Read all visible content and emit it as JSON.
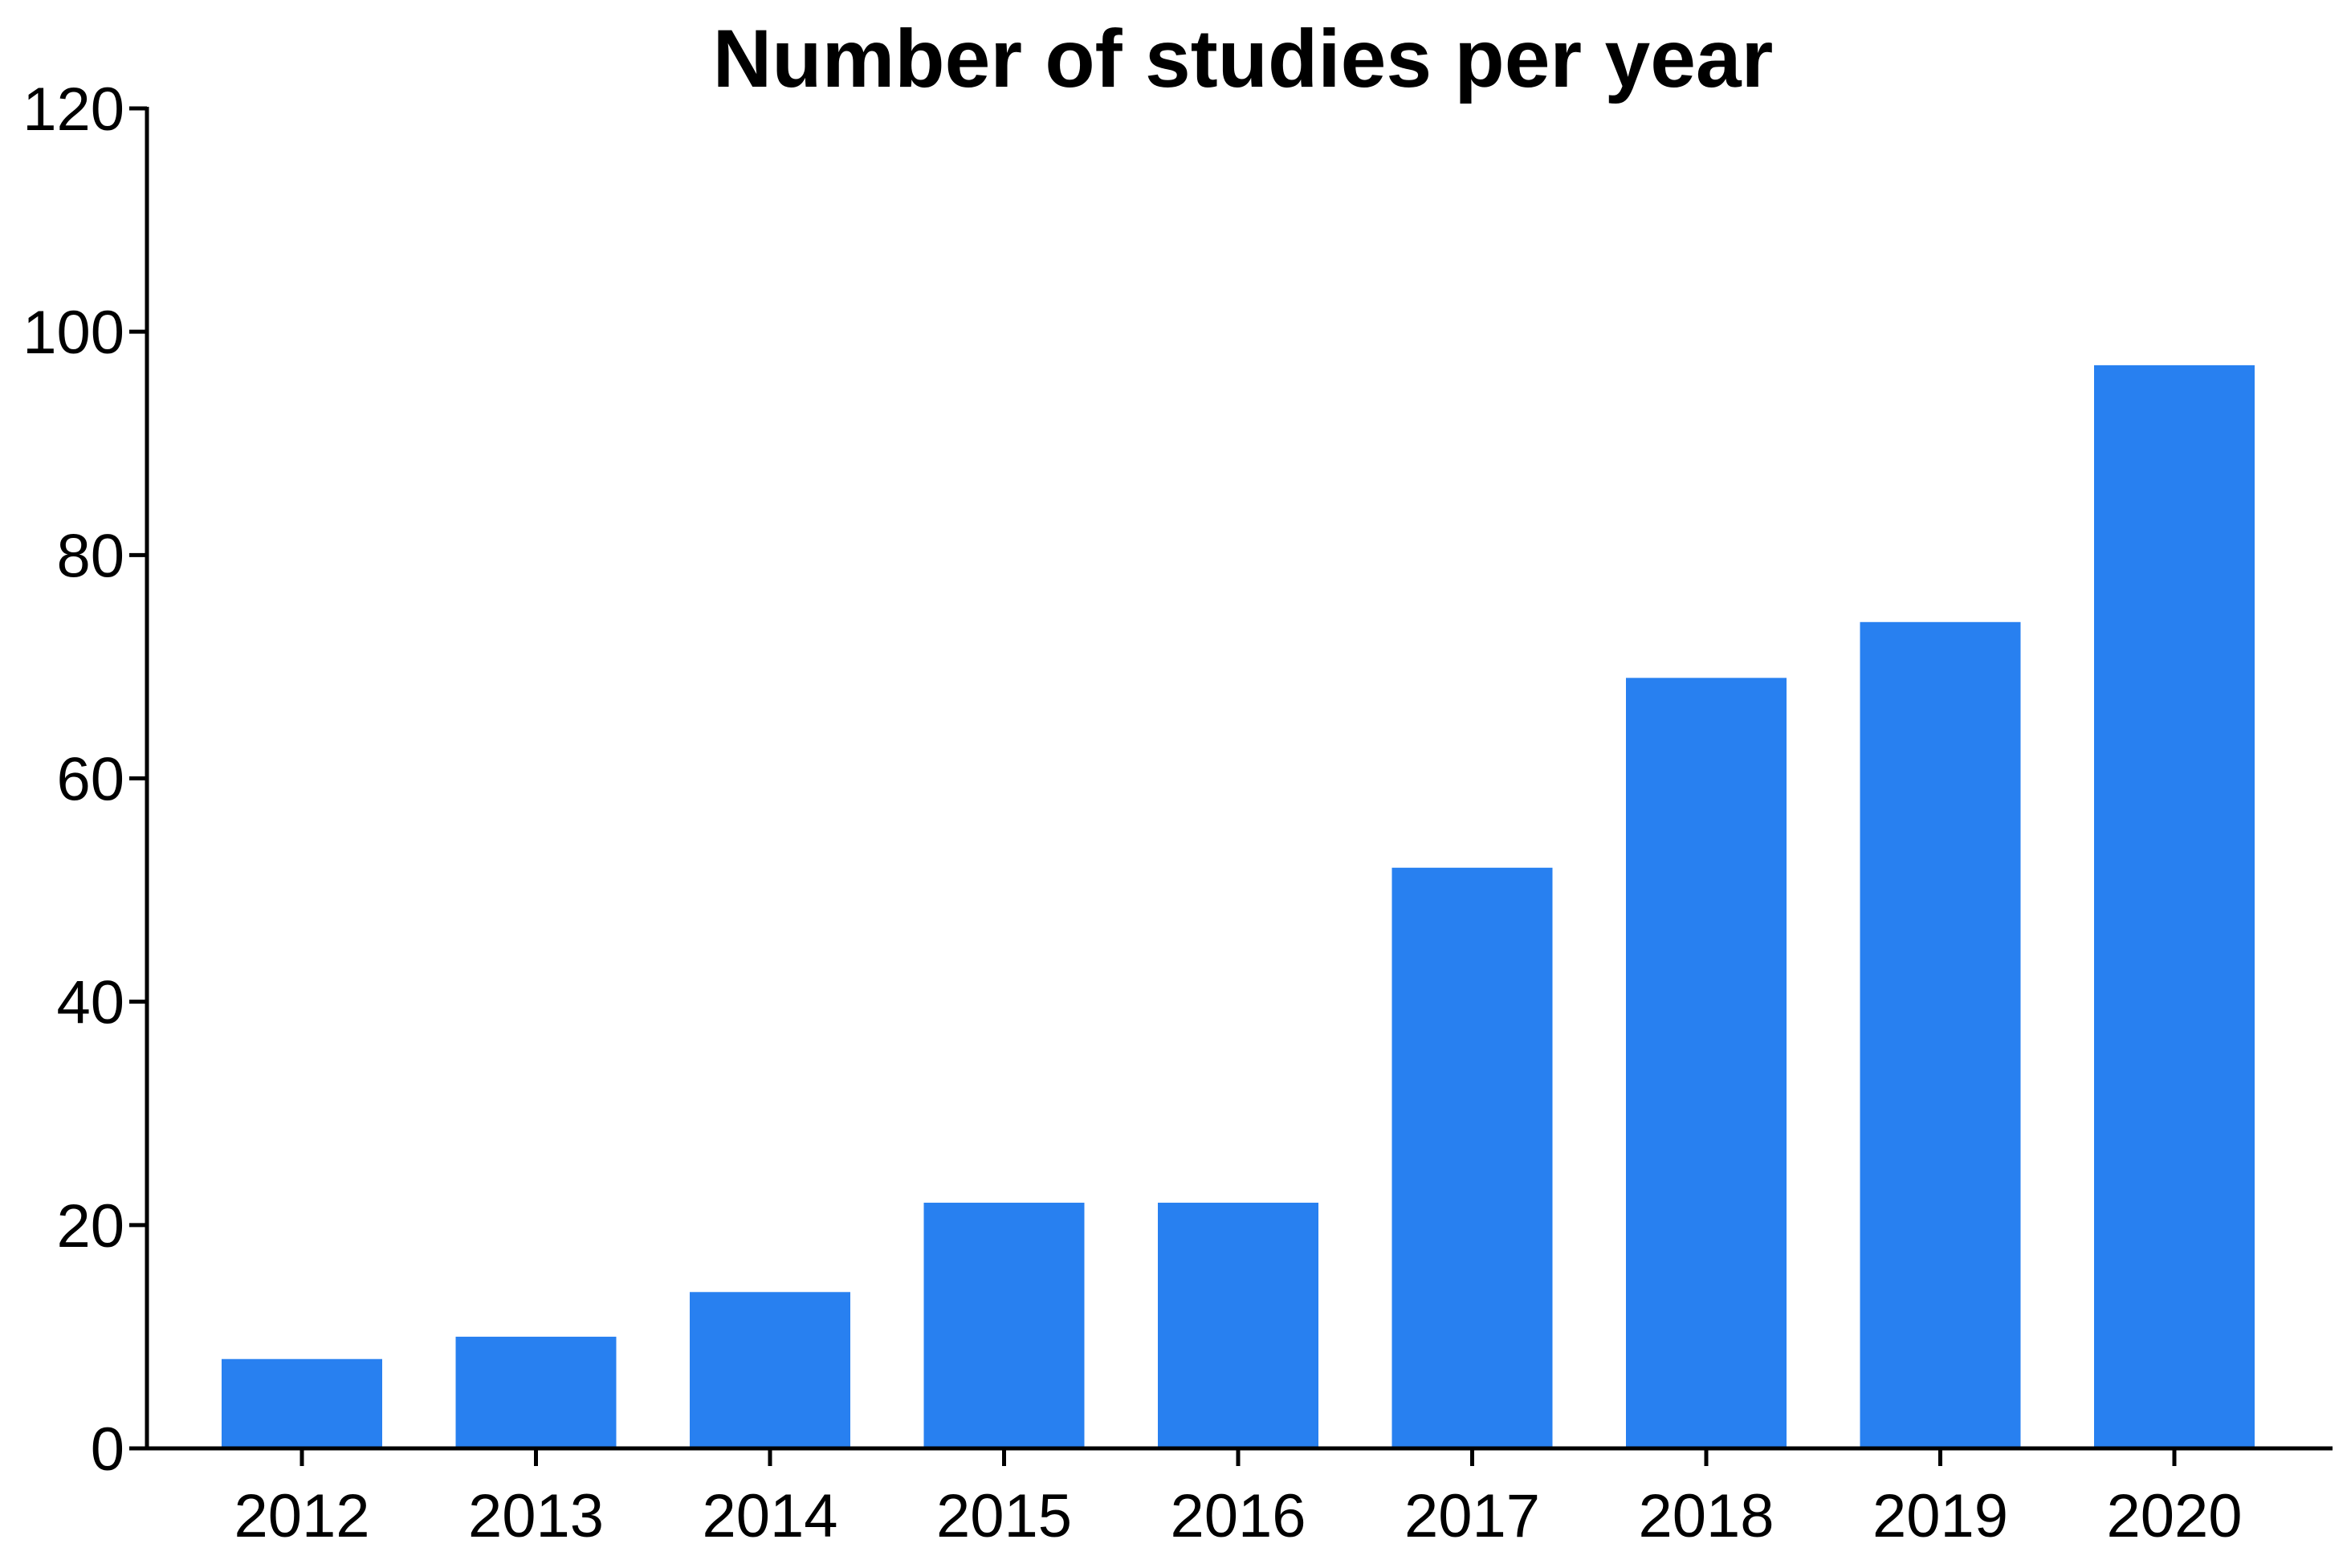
{
  "chart_data": {
    "type": "bar",
    "title": "Number of studies per year",
    "xlabel": "",
    "ylabel": "",
    "categories": [
      "2012",
      "2013",
      "2014",
      "2015",
      "2016",
      "2017",
      "2018",
      "2019",
      "2020"
    ],
    "values": [
      8,
      10,
      14,
      22,
      22,
      52,
      69,
      74,
      97
    ],
    "ylim": [
      0,
      120
    ],
    "yticks": [
      "0",
      "20",
      "40",
      "60",
      "80",
      "100",
      "120"
    ],
    "grid": false,
    "legend": "none",
    "bar_color": "#2880F0"
  }
}
